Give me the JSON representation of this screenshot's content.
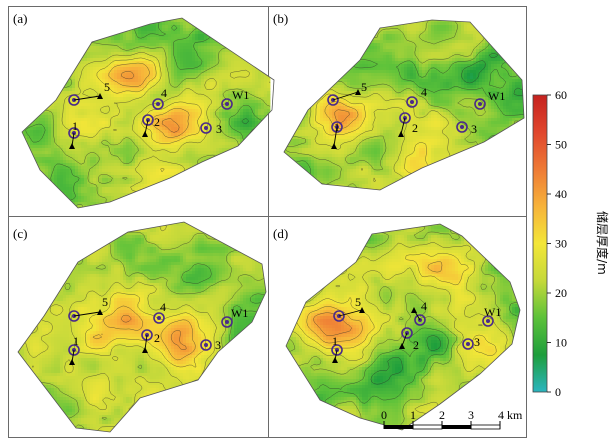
{
  "panels": [
    {
      "label": "(a)",
      "wells": [
        {
          "name": "1"
        },
        {
          "name": "2"
        },
        {
          "name": "3"
        },
        {
          "name": "4"
        },
        {
          "name": "5"
        },
        {
          "name": "W1"
        }
      ]
    },
    {
      "label": "(b)",
      "wells": [
        {
          "name": "1"
        },
        {
          "name": "2"
        },
        {
          "name": "3"
        },
        {
          "name": "4"
        },
        {
          "name": "5"
        },
        {
          "name": "W1"
        }
      ]
    },
    {
      "label": "(c)",
      "wells": [
        {
          "name": "1"
        },
        {
          "name": "2"
        },
        {
          "name": "3"
        },
        {
          "name": "4"
        },
        {
          "name": "5"
        },
        {
          "name": "W1"
        }
      ]
    },
    {
      "label": "(d)",
      "wells": [
        {
          "name": "1"
        },
        {
          "name": "2"
        },
        {
          "name": "3"
        },
        {
          "name": "4"
        },
        {
          "name": "5"
        },
        {
          "name": "W1"
        }
      ]
    }
  ],
  "colorbar": {
    "title": "储层厚度/m",
    "min": 0,
    "max": 60,
    "ticks": [
      "0",
      "10",
      "20",
      "30",
      "40",
      "50",
      "60"
    ],
    "colors": [
      "#2ab5c0",
      "#1e9e3c",
      "#5cc23a",
      "#c5d93a",
      "#f3e638",
      "#f7b33a",
      "#ee7a35",
      "#e0462d",
      "#c5221f"
    ]
  },
  "scalebar": {
    "ticks": [
      "0",
      "1",
      "2",
      "3",
      "4 km"
    ]
  },
  "thickness": {
    "a": {
      "bg": 20,
      "blobs": [
        [
          0.48,
          0.32,
          17
        ],
        [
          0.63,
          0.56,
          22
        ],
        [
          0.27,
          0.52,
          7
        ],
        [
          0.55,
          0.83,
          6
        ],
        [
          0.76,
          0.42,
          4
        ],
        [
          0.33,
          0.32,
          9
        ],
        [
          0.7,
          0.22,
          -7
        ],
        [
          0.92,
          0.55,
          -9
        ],
        [
          0.2,
          0.8,
          -6
        ],
        [
          0.47,
          0.13,
          -5
        ],
        [
          0.14,
          0.55,
          -4
        ]
      ]
    },
    "b": {
      "bg": 20,
      "blobs": [
        [
          0.28,
          0.52,
          22
        ],
        [
          0.46,
          0.47,
          7
        ],
        [
          0.6,
          0.55,
          6
        ],
        [
          0.58,
          0.73,
          6
        ],
        [
          0.3,
          0.85,
          4
        ],
        [
          0.66,
          0.4,
          -6
        ],
        [
          0.82,
          0.29,
          -9
        ],
        [
          0.94,
          0.45,
          -11
        ],
        [
          0.9,
          0.68,
          -8
        ],
        [
          0.14,
          0.82,
          -5
        ],
        [
          0.47,
          0.26,
          -5
        ]
      ]
    },
    "c": {
      "bg": 21,
      "blobs": [
        [
          0.45,
          0.48,
          17
        ],
        [
          0.65,
          0.55,
          24
        ],
        [
          0.3,
          0.46,
          8
        ],
        [
          0.55,
          0.8,
          6
        ],
        [
          0.35,
          0.77,
          5
        ],
        [
          0.71,
          0.26,
          -8
        ],
        [
          0.92,
          0.45,
          -10
        ],
        [
          0.86,
          0.7,
          -7
        ],
        [
          0.18,
          0.82,
          -6
        ],
        [
          0.5,
          0.18,
          -5
        ]
      ]
    },
    "d": {
      "bg": 19,
      "blobs": [
        [
          0.22,
          0.48,
          20
        ],
        [
          0.36,
          0.54,
          8
        ],
        [
          0.68,
          0.23,
          12
        ],
        [
          0.52,
          0.19,
          10
        ],
        [
          0.6,
          0.55,
          -9
        ],
        [
          0.45,
          0.71,
          -7
        ],
        [
          0.82,
          0.6,
          10
        ],
        [
          0.76,
          0.44,
          6
        ],
        [
          0.92,
          0.36,
          -6
        ],
        [
          0.16,
          0.82,
          -6
        ],
        [
          0.85,
          0.85,
          -7
        ],
        [
          0.5,
          0.45,
          6
        ],
        [
          0.3,
          0.24,
          5
        ],
        [
          0.62,
          0.85,
          5
        ]
      ]
    }
  }
}
